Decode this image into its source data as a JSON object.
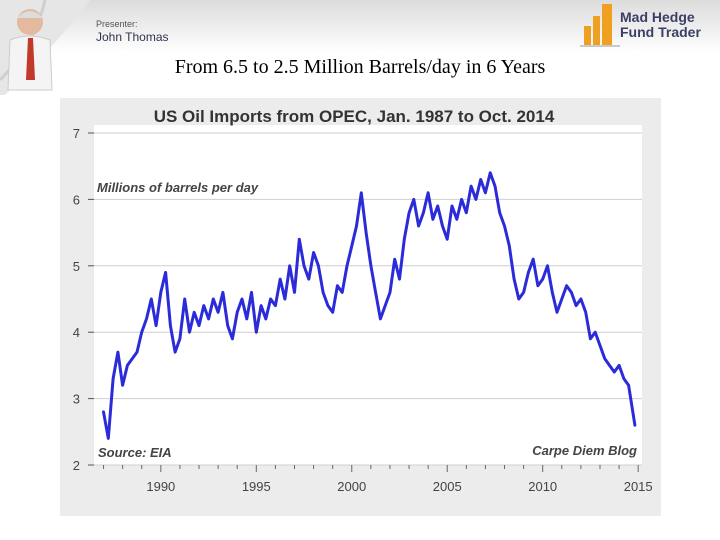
{
  "header": {
    "presenter_label": "Presenter:",
    "presenter_name": "John Thomas",
    "brand_line1": "Mad Hedge",
    "brand_line2": "Fund Trader",
    "brand_color": "#f0a020"
  },
  "slide_title": "From 6.5 to 2.5 Million Barrels/day in 6 Years",
  "chart_data": {
    "type": "line",
    "title": "US Oil Imports from OPEC, Jan. 1987 to Oct. 2014",
    "ylabel": "Millions of barrels per day",
    "source": "Source: EIA",
    "credit": "Carpe Diem Blog",
    "xlim": [
      1986.5,
      2015.2
    ],
    "ylim": [
      2,
      7
    ],
    "x_ticks": [
      1990,
      1995,
      2000,
      2005,
      2010,
      2015
    ],
    "y_ticks": [
      2,
      3,
      4,
      5,
      6,
      7
    ],
    "grid": true,
    "line_color": "#2b2bd9",
    "series": [
      {
        "x": [
          1987.0,
          1987.25,
          1987.5,
          1987.75,
          1988.0,
          1988.25,
          1988.5,
          1988.75,
          1989.0,
          1989.25,
          1989.5,
          1989.75,
          1990.0,
          1990.25,
          1990.5,
          1990.75,
          1991.0,
          1991.25,
          1991.5,
          1991.75,
          1992.0,
          1992.25,
          1992.5,
          1992.75,
          1993.0,
          1993.25,
          1993.5,
          1993.75,
          1994.0,
          1994.25,
          1994.5,
          1994.75,
          1995.0,
          1995.25,
          1995.5,
          1995.75,
          1996.0,
          1996.25,
          1996.5,
          1996.75,
          1997.0,
          1997.25,
          1997.5,
          1997.75,
          1998.0,
          1998.25,
          1998.5,
          1998.75,
          1999.0,
          1999.25,
          1999.5,
          1999.75,
          2000.0,
          2000.25,
          2000.5,
          2000.75,
          2001.0,
          2001.25,
          2001.5,
          2001.75,
          2002.0,
          2002.25,
          2002.5,
          2002.75,
          2003.0,
          2003.25,
          2003.5,
          2003.75,
          2004.0,
          2004.25,
          2004.5,
          2004.75,
          2005.0,
          2005.25,
          2005.5,
          2005.75,
          2006.0,
          2006.25,
          2006.5,
          2006.75,
          2007.0,
          2007.25,
          2007.5,
          2007.75,
          2008.0,
          2008.25,
          2008.5,
          2008.75,
          2009.0,
          2009.25,
          2009.5,
          2009.75,
          2010.0,
          2010.25,
          2010.5,
          2010.75,
          2011.0,
          2011.25,
          2011.5,
          2011.75,
          2012.0,
          2012.25,
          2012.5,
          2012.75,
          2013.0,
          2013.25,
          2013.5,
          2013.75,
          2014.0,
          2014.25,
          2014.5,
          2014.83
        ],
        "values": [
          2.8,
          2.4,
          3.3,
          3.7,
          3.2,
          3.5,
          3.6,
          3.7,
          4.0,
          4.2,
          4.5,
          4.1,
          4.6,
          4.9,
          4.1,
          3.7,
          3.9,
          4.5,
          4.0,
          4.3,
          4.1,
          4.4,
          4.2,
          4.5,
          4.3,
          4.6,
          4.1,
          3.9,
          4.3,
          4.5,
          4.2,
          4.6,
          4.0,
          4.4,
          4.2,
          4.5,
          4.4,
          4.8,
          4.5,
          5.0,
          4.6,
          5.4,
          5.0,
          4.8,
          5.2,
          5.0,
          4.6,
          4.4,
          4.3,
          4.7,
          4.6,
          5.0,
          5.3,
          5.6,
          6.1,
          5.5,
          5.0,
          4.6,
          4.2,
          4.4,
          4.6,
          5.1,
          4.8,
          5.4,
          5.8,
          6.0,
          5.6,
          5.8,
          6.1,
          5.7,
          5.9,
          5.6,
          5.4,
          5.9,
          5.7,
          6.0,
          5.8,
          6.2,
          6.0,
          6.3,
          6.1,
          6.4,
          6.2,
          5.8,
          5.6,
          5.3,
          4.8,
          4.5,
          4.6,
          4.9,
          5.1,
          4.7,
          4.8,
          5.0,
          4.6,
          4.3,
          4.5,
          4.7,
          4.6,
          4.4,
          4.5,
          4.3,
          3.9,
          4.0,
          3.8,
          3.6,
          3.5,
          3.4,
          3.5,
          3.3,
          3.2,
          2.6
        ]
      }
    ]
  }
}
